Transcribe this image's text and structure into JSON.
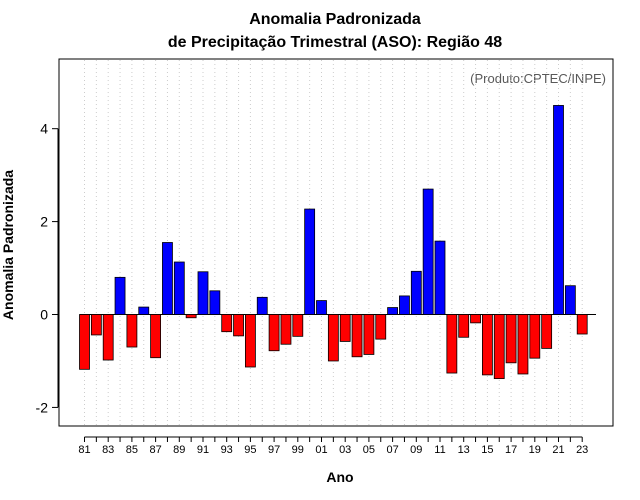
{
  "chart_data": {
    "type": "bar",
    "title": "Anomalia Padronizada",
    "subtitle": "de Precipitação Trimestral (ASO): Região 48",
    "xlabel": "Ano",
    "ylabel": "Anomalia Padronizada",
    "annotation": "(Produto:CPTEC/INPE)",
    "ylim": [
      -2.4,
      5.5
    ],
    "yticks": [
      -2,
      0,
      2,
      4
    ],
    "grid": "vertical-dotted",
    "colors": {
      "positive": "#0000ff",
      "negative": "#ff0000",
      "axis": "#000000",
      "grid": "#cccccc"
    },
    "categories": [
      "1981",
      "1982",
      "1983",
      "1984",
      "1985",
      "1986",
      "1987",
      "1988",
      "1989",
      "1990",
      "1991",
      "1992",
      "1993",
      "1994",
      "1995",
      "1996",
      "1997",
      "1998",
      "1999",
      "2000",
      "2001",
      "2002",
      "2003",
      "2004",
      "2005",
      "2006",
      "2007",
      "2008",
      "2009",
      "2010",
      "2011",
      "2012",
      "2013",
      "2014",
      "2015",
      "2016",
      "2017",
      "2018",
      "2019",
      "2020",
      "2021",
      "2022",
      "2023"
    ],
    "tick_labels": [
      "81",
      "83",
      "85",
      "87",
      "89",
      "91",
      "93",
      "95",
      "97",
      "99",
      "01",
      "03",
      "05",
      "07",
      "09",
      "11",
      "13",
      "15",
      "17",
      "19",
      "21",
      "23"
    ],
    "values": [
      -1.18,
      -0.44,
      -0.98,
      0.8,
      -0.7,
      0.16,
      -0.93,
      1.55,
      1.13,
      -0.07,
      0.92,
      0.51,
      -0.37,
      -0.46,
      -1.13,
      0.37,
      -0.78,
      -0.64,
      -0.47,
      2.27,
      0.3,
      -1.0,
      -0.58,
      -0.91,
      -0.86,
      -0.53,
      0.15,
      0.4,
      0.93,
      2.7,
      1.58,
      -1.26,
      -0.49,
      -0.18,
      -1.3,
      -1.38,
      -1.04,
      -1.28,
      -0.94,
      -0.73,
      4.5,
      0.62,
      -0.42
    ]
  }
}
